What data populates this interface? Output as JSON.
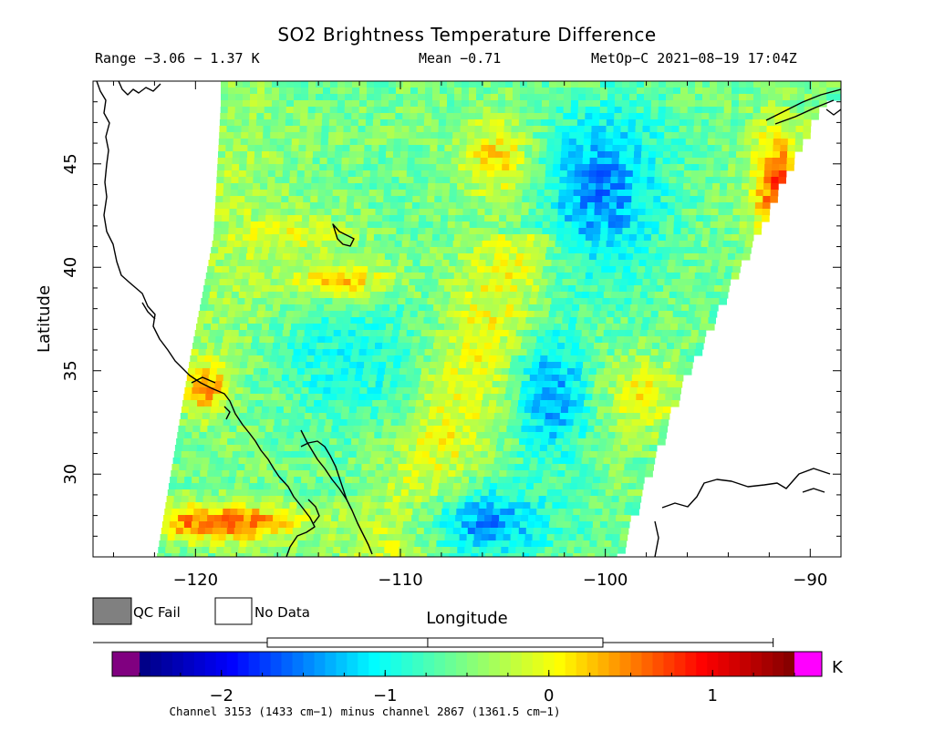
{
  "title": "SO2 Brightness Temperature Difference",
  "info": {
    "range": "Range −3.06 − 1.37 K",
    "mean": "Mean −0.71",
    "satellite": "MetOp−C 2021−08−19 17:04Z"
  },
  "map": {
    "xlabel": "Longitude",
    "ylabel": "Latitude",
    "lon_range": [
      -125,
      -88.5
    ],
    "lat_range": [
      26,
      49
    ],
    "lon_ticks": [
      "−120",
      "−110",
      "−100",
      "−90"
    ],
    "lon_tick_values": [
      -120,
      -110,
      -100,
      -90
    ],
    "lat_ticks": [
      "30",
      "35",
      "40",
      "45"
    ],
    "lat_tick_values": [
      30,
      35,
      40,
      45
    ]
  },
  "legend": {
    "qc_fail_label": "QC Fail",
    "no_data_label": "No Data",
    "qc_fail_color": "#808080",
    "no_data_color": "#ffffff"
  },
  "colorbar": {
    "range": [
      -2.5,
      1.5
    ],
    "ticks": [
      "−2",
      "−1",
      "0",
      "1"
    ],
    "tick_values": [
      -2,
      -1,
      0,
      1
    ],
    "unit": "K",
    "under_color": "#800080",
    "over_color": "#ff00ff",
    "boxplot": {
      "min": -3.06,
      "q1": -1.72,
      "median": -0.74,
      "q3": 0.33,
      "max": 1.37
    }
  },
  "footnote": "Channel 3153 (1433 cm−1) minus channel 2867 (1361.5 cm−1)"
}
